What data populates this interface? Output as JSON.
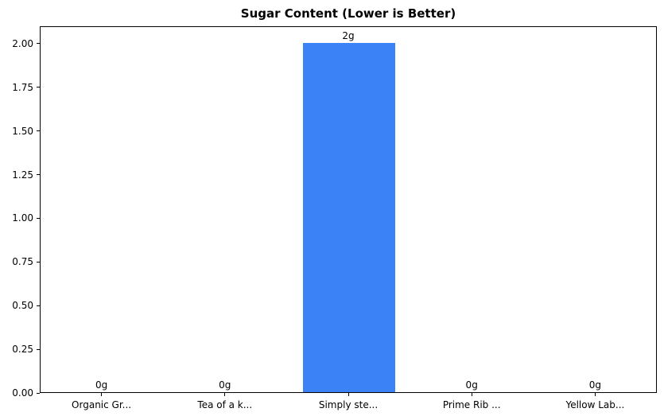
{
  "chart_data": {
    "type": "bar",
    "title": "Sugar Content (Lower is Better)",
    "categories": [
      "Organic Gr...",
      "Tea of a k...",
      "Simply ste...",
      "Prime Rib ...",
      "Yellow Lab..."
    ],
    "values": [
      0,
      0,
      2,
      0,
      0
    ],
    "bar_labels": [
      "0g",
      "0g",
      "2g",
      "0g",
      "0g"
    ],
    "xlabel": "",
    "ylabel": "",
    "ylim": [
      0,
      2.1
    ],
    "yticks": [
      0,
      0.25,
      0.5,
      0.75,
      1,
      1.25,
      1.5,
      1.75,
      2
    ],
    "ytick_labels": [
      "0.00",
      "0.25",
      "0.50",
      "0.75",
      "1.00",
      "1.25",
      "1.50",
      "1.75",
      "2.00"
    ],
    "grid": false,
    "legend": false,
    "bar_relative_width": 0.75,
    "colors": {
      "bar": "#3b82f6",
      "text": "#000000",
      "spine": "#000000",
      "background": "#ffffff"
    }
  }
}
